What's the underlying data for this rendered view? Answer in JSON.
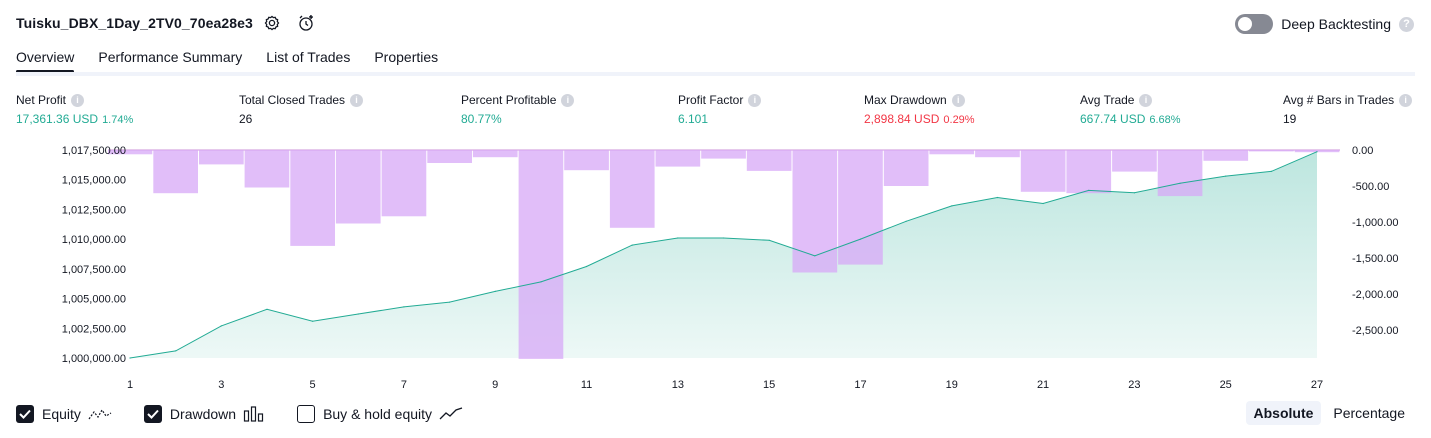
{
  "header": {
    "strategy_name": "Tuisku_DBX_1Day_2TV0_70ea28e3",
    "deep_backtesting_label": "Deep Backtesting",
    "deep_backtesting_enabled": false
  },
  "tabs": [
    {
      "label": "Overview",
      "active": true
    },
    {
      "label": "Performance Summary",
      "active": false
    },
    {
      "label": "List of Trades",
      "active": false
    },
    {
      "label": "Properties",
      "active": false
    }
  ],
  "metrics": [
    {
      "label": "Net Profit",
      "value": "17,361.36 USD",
      "pct": "1.74%",
      "tone": "green"
    },
    {
      "label": "Total Closed Trades",
      "value": "26",
      "pct": "",
      "tone": "dark"
    },
    {
      "label": "Percent Profitable",
      "value": "80.77%",
      "pct": "",
      "tone": "green"
    },
    {
      "label": "Profit Factor",
      "value": "6.101",
      "pct": "",
      "tone": "green"
    },
    {
      "label": "Max Drawdown",
      "value": "2,898.84 USD",
      "pct": "0.29%",
      "tone": "red"
    },
    {
      "label": "Avg Trade",
      "value": "667.74 USD",
      "pct": "6.68%",
      "tone": "green"
    },
    {
      "label": "Avg # Bars in Trades",
      "value": "19",
      "pct": "",
      "tone": "dark"
    }
  ],
  "chart_data": {
    "type": "area",
    "x_tick_labels": [
      "1",
      "3",
      "5",
      "7",
      "9",
      "11",
      "13",
      "15",
      "17",
      "19",
      "21",
      "23",
      "25",
      "27"
    ],
    "left_axis_ticks": [
      "1,017,500.00",
      "1,015,000.00",
      "1,012,500.00",
      "1,010,000.00",
      "1,007,500.00",
      "1,005,000.00",
      "1,002,500.00",
      "1,000,000.00"
    ],
    "right_axis_ticks": [
      "0.00",
      "-500.00",
      "-1,000.00",
      "-1,500.00",
      "-2,000.00",
      "-2,500.00"
    ],
    "ylim_left": [
      1000000,
      1017500
    ],
    "ylim_right": [
      -2900,
      0
    ],
    "series": [
      {
        "name": "Equity",
        "color": "#22ab94",
        "x": [
          1,
          2,
          3,
          4,
          5,
          6,
          7,
          8,
          9,
          10,
          11,
          12,
          13,
          14,
          15,
          16,
          17,
          18,
          19,
          20,
          21,
          22,
          23,
          24,
          25,
          26,
          27
        ],
        "values": [
          1000000,
          1000600,
          1002700,
          1004100,
          1003100,
          1003700,
          1004300,
          1004700,
          1005600,
          1006400,
          1007700,
          1009500,
          1010100,
          1010100,
          1009900,
          1008600,
          1010000,
          1011500,
          1012800,
          1013500,
          1013000,
          1014100,
          1013900,
          1014700,
          1015300,
          1015700,
          1017361
        ]
      },
      {
        "name": "Drawdown",
        "color": "#ce93d8",
        "x": [
          1,
          2,
          3,
          4,
          5,
          6,
          7,
          8,
          9,
          10,
          11,
          12,
          13,
          14,
          15,
          16,
          17,
          18,
          19,
          20,
          21,
          22,
          23,
          24,
          25,
          26,
          27
        ],
        "values": [
          -60,
          -600,
          -200,
          -520,
          -1330,
          -1020,
          -920,
          -180,
          -100,
          -2898.84,
          -280,
          -1080,
          -230,
          -120,
          -290,
          -1700,
          -1590,
          -500,
          -60,
          -100,
          -580,
          -600,
          -300,
          -640,
          -150,
          -20,
          -30
        ]
      }
    ]
  },
  "legend": [
    {
      "label": "Equity",
      "checked": true,
      "icon": "equity-line-icon"
    },
    {
      "label": "Drawdown",
      "checked": true,
      "icon": "drawdown-bars-icon"
    },
    {
      "label": "Buy & hold equity",
      "checked": false,
      "icon": "buy-hold-line-icon"
    }
  ],
  "view_modes": [
    {
      "label": "Absolute",
      "active": true
    },
    {
      "label": "Percentage",
      "active": false
    }
  ]
}
